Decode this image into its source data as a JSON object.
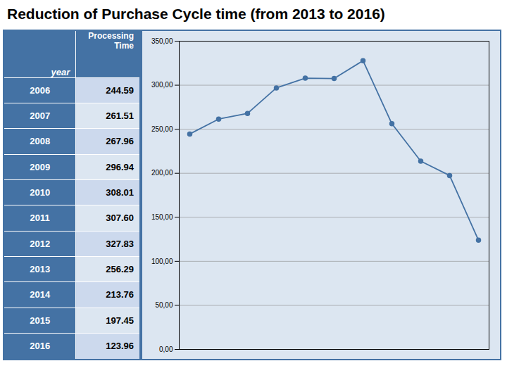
{
  "chart_data": {
    "type": "line",
    "title": "Reduction of Purchase Cycle time (from 2013 to 2016)",
    "categories": [
      "2006",
      "2007",
      "2008",
      "2009",
      "2010",
      "2011",
      "2012",
      "2013",
      "2014",
      "2015",
      "2016"
    ],
    "values": [
      244.59,
      261.51,
      267.96,
      296.94,
      308.01,
      307.6,
      327.83,
      256.29,
      213.76,
      197.45,
      123.96
    ],
    "value_labels": [
      "244.59",
      "261.51",
      "267.96",
      "296.94",
      "308.01",
      "307.60",
      "327.83",
      "256.29",
      "213.76",
      "197.45",
      "123.96"
    ],
    "annotations": [
      "year",
      "Processing\nTime"
    ],
    "color": "#4472a4",
    "marker": "circle",
    "ylim": [
      0,
      350
    ],
    "yticks": [
      {
        "value": 0,
        "label": "0,00"
      },
      {
        "value": 50,
        "label": "50,00"
      },
      {
        "value": 100,
        "label": "100,00"
      },
      {
        "value": 150,
        "label": "150,00"
      },
      {
        "value": 200,
        "label": "200,00"
      },
      {
        "value": 250,
        "label": "250,00"
      },
      {
        "value": 300,
        "label": "300,00"
      },
      {
        "value": 350,
        "label": "350,00"
      }
    ],
    "grid": true,
    "tick_labels": "y"
  }
}
